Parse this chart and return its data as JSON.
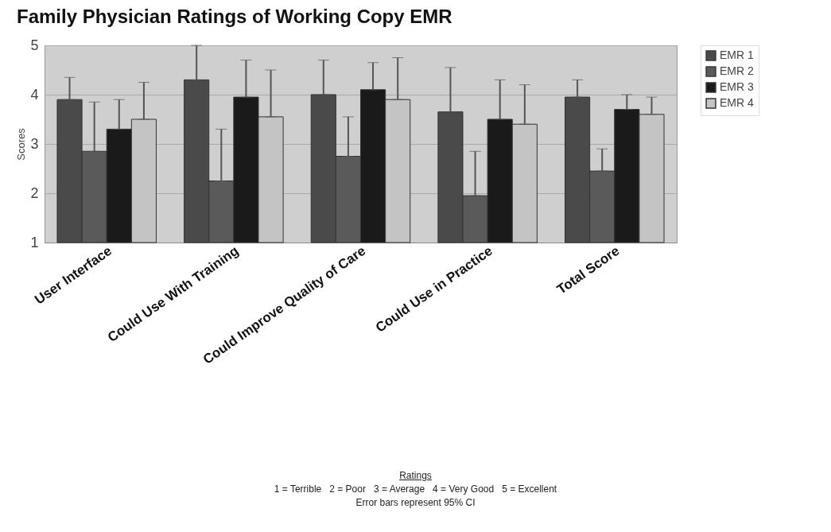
{
  "chart_data": {
    "type": "bar",
    "title": "Family Physician Ratings of Working Copy EMR",
    "ylabel": "Scores",
    "categories": [
      "User Interface",
      "Could Use With Training",
      "Could Improve Quality of Care",
      "Could Use in Practice",
      "Total Score"
    ],
    "series": [
      {
        "name": "EMR 1",
        "color": "#4a4a4a",
        "values": [
          3.9,
          4.3,
          4.0,
          3.65,
          3.95
        ],
        "errors": [
          [
            3.9,
            4.35
          ],
          [
            4.3,
            5.0
          ],
          [
            4.0,
            4.7
          ],
          [
            3.65,
            4.55
          ],
          [
            3.95,
            4.3
          ]
        ]
      },
      {
        "name": "EMR 2",
        "color": "#5a5a5a",
        "values": [
          2.85,
          2.25,
          2.75,
          1.95,
          2.45
        ],
        "errors": [
          [
            2.85,
            3.85
          ],
          [
            2.25,
            3.3
          ],
          [
            2.75,
            3.55
          ],
          [
            1.95,
            2.85
          ],
          [
            2.45,
            2.9
          ]
        ]
      },
      {
        "name": "EMR 3",
        "color": "#1a1a1a",
        "values": [
          3.3,
          3.95,
          4.1,
          3.5,
          3.7
        ],
        "errors": [
          [
            3.3,
            3.9
          ],
          [
            3.95,
            4.7
          ],
          [
            4.1,
            4.65
          ],
          [
            3.5,
            4.3
          ],
          [
            3.7,
            4.0
          ]
        ]
      },
      {
        "name": "EMR 4",
        "color": "#c4c4c4",
        "values": [
          3.5,
          3.55,
          3.9,
          3.4,
          3.6
        ],
        "errors": [
          [
            3.5,
            4.25
          ],
          [
            3.55,
            4.5
          ],
          [
            3.9,
            4.75
          ],
          [
            3.4,
            4.2
          ],
          [
            3.6,
            3.95
          ]
        ]
      }
    ],
    "ylim": [
      1,
      5
    ],
    "yticks": [
      1,
      2,
      3,
      4,
      5
    ],
    "grid": "y",
    "legend": "right",
    "annotations": [
      "Ratings",
      "1 = Terrible   2 = Poor   3 = Average   4 = Very Good   5 = Excellent",
      "Error bars represent 95% CI"
    ]
  }
}
